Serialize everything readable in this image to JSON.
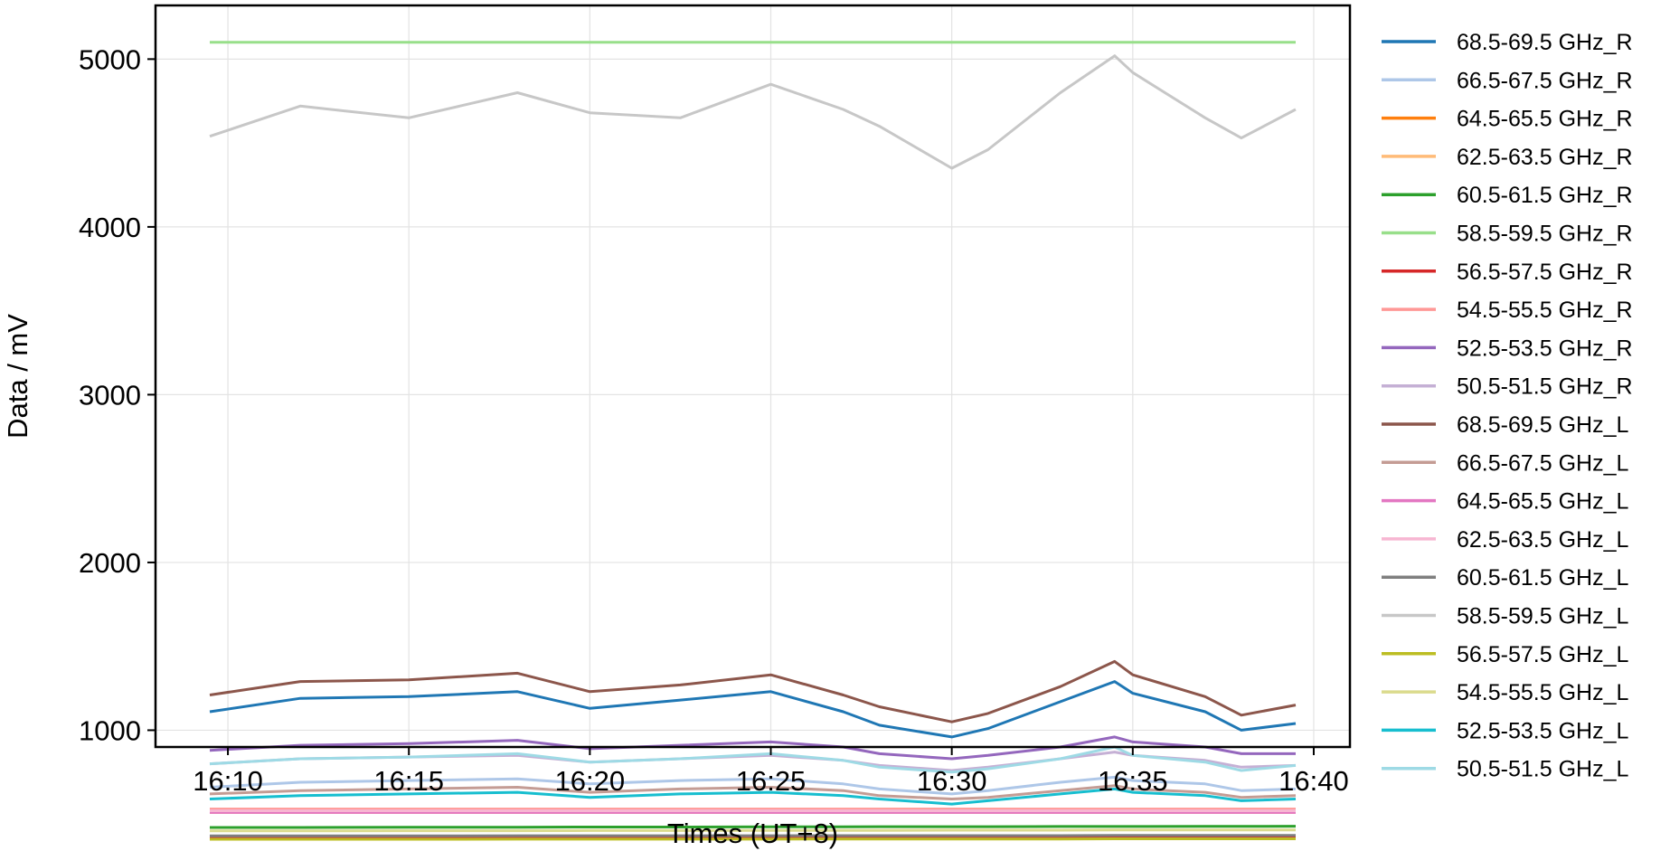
{
  "chart_data": {
    "type": "line",
    "xlabel": "Times (UT+8)",
    "ylabel": "Data / mV",
    "x_range": [
      "16:08",
      "16:41"
    ],
    "ylim": [
      900,
      5320
    ],
    "y_ticks": [
      1000,
      2000,
      3000,
      4000,
      5000
    ],
    "x_ticks": [
      "16:10",
      "16:15",
      "16:20",
      "16:25",
      "16:30",
      "16:35",
      "16:40"
    ],
    "grid": true,
    "legend_position": "right, outside plot",
    "x_time_points": [
      "16:09:30",
      "16:12",
      "16:15",
      "16:18",
      "16:20",
      "16:22:30",
      "16:25",
      "16:27",
      "16:28",
      "16:30",
      "16:31",
      "16:33",
      "16:34:30",
      "16:35",
      "16:37",
      "16:38",
      "16:39:30"
    ],
    "series": [
      {
        "name": "68.5-69.5 GHz_R",
        "color": "#1f77b4",
        "values": [
          1110,
          1190,
          1200,
          1230,
          1130,
          1180,
          1230,
          1110,
          1030,
          960,
          1010,
          1170,
          1290,
          1220,
          1110,
          1000,
          1040
        ]
      },
      {
        "name": "66.5-67.5 GHz_R",
        "color": "#aec7e8",
        "values": [
          660,
          690,
          700,
          710,
          680,
          700,
          710,
          680,
          650,
          620,
          640,
          690,
          720,
          700,
          680,
          640,
          650
        ]
      },
      {
        "name": "64.5-65.5 GHz_R",
        "color": "#ff7f0e",
        "values": [
          520,
          520,
          520,
          520,
          520,
          520,
          520,
          520,
          520,
          520,
          520,
          520,
          520,
          520,
          520,
          520,
          520
        ]
      },
      {
        "name": "62.5-63.5 GHz_R",
        "color": "#ffbb78",
        "values": [
          510,
          510,
          510,
          510,
          510,
          510,
          510,
          510,
          510,
          510,
          510,
          510,
          510,
          510,
          510,
          510,
          510
        ]
      },
      {
        "name": "60.5-61.5 GHz_R",
        "color": "#2ca02c",
        "values": [
          420,
          420,
          422,
          422,
          423,
          423,
          424,
          424,
          425,
          425,
          425,
          426,
          426,
          426,
          427,
          427,
          428
        ]
      },
      {
        "name": "58.5-59.5 GHz_R",
        "color": "#98df8a",
        "values": [
          5100,
          5100,
          5100,
          5100,
          5100,
          5100,
          5100,
          5100,
          5100,
          5100,
          5100,
          5100,
          5100,
          5100,
          5100,
          5100,
          5100
        ]
      },
      {
        "name": "56.5-57.5 GHz_R",
        "color": "#d62728",
        "values": [
          360,
          360,
          360,
          361,
          361,
          361,
          361,
          362,
          362,
          362,
          362,
          362,
          363,
          363,
          363,
          363,
          363
        ]
      },
      {
        "name": "54.5-55.5 GHz_R",
        "color": "#ff9896",
        "values": [
          530,
          530,
          530,
          530,
          530,
          530,
          530,
          530,
          530,
          530,
          530,
          530,
          530,
          530,
          530,
          530,
          530
        ]
      },
      {
        "name": "52.5-53.5 GHz_R",
        "color": "#9467bd",
        "values": [
          880,
          910,
          920,
          940,
          890,
          910,
          930,
          900,
          860,
          830,
          850,
          900,
          960,
          930,
          900,
          860,
          860
        ]
      },
      {
        "name": "50.5-51.5 GHz_R",
        "color": "#c5b0d5",
        "values": [
          800,
          830,
          840,
          850,
          810,
          830,
          850,
          820,
          790,
          760,
          780,
          830,
          870,
          850,
          820,
          780,
          790
        ]
      },
      {
        "name": "68.5-69.5 GHz_L",
        "color": "#8c564b",
        "values": [
          1210,
          1290,
          1300,
          1340,
          1230,
          1270,
          1330,
          1210,
          1140,
          1050,
          1100,
          1260,
          1410,
          1330,
          1200,
          1090,
          1150
        ]
      },
      {
        "name": "66.5-67.5 GHz_L",
        "color": "#c49c94",
        "values": [
          620,
          640,
          650,
          660,
          630,
          650,
          660,
          640,
          610,
          590,
          600,
          640,
          670,
          650,
          630,
          600,
          610
        ]
      },
      {
        "name": "64.5-65.5 GHz_L",
        "color": "#e377c2",
        "values": [
          510,
          510,
          510,
          510,
          510,
          510,
          510,
          510,
          510,
          510,
          510,
          510,
          510,
          510,
          510,
          510,
          510
        ]
      },
      {
        "name": "62.5-63.5 GHz_L",
        "color": "#f7b6d2",
        "values": [
          520,
          520,
          520,
          520,
          520,
          520,
          520,
          520,
          520,
          520,
          520,
          520,
          520,
          520,
          520,
          520,
          520
        ]
      },
      {
        "name": "60.5-61.5 GHz_L",
        "color": "#7f7f7f",
        "values": [
          370,
          370,
          370,
          371,
          371,
          371,
          371,
          372,
          372,
          372,
          372,
          372,
          373,
          373,
          373,
          373,
          373
        ]
      },
      {
        "name": "58.5-59.5 GHz_L",
        "color": "#c7c7c7",
        "values": [
          4540,
          4720,
          4650,
          4800,
          4680,
          4650,
          4850,
          4700,
          4600,
          4350,
          4460,
          4800,
          5020,
          4920,
          4650,
          4530,
          4700
        ]
      },
      {
        "name": "56.5-57.5 GHz_L",
        "color": "#bcbd22",
        "values": [
          350,
          350,
          350,
          351,
          351,
          351,
          351,
          352,
          352,
          352,
          352,
          352,
          353,
          353,
          353,
          353,
          353
        ]
      },
      {
        "name": "54.5-55.5 GHz_L",
        "color": "#dbdb8d",
        "values": [
          400,
          400,
          401,
          401,
          402,
          402,
          403,
          403,
          403,
          404,
          404,
          404,
          405,
          405,
          405,
          405,
          405
        ]
      },
      {
        "name": "52.5-53.5 GHz_L",
        "color": "#17becf",
        "values": [
          590,
          610,
          620,
          630,
          600,
          620,
          630,
          610,
          590,
          560,
          580,
          620,
          650,
          630,
          610,
          580,
          590
        ]
      },
      {
        "name": "50.5-51.5 GHz_L",
        "color": "#9edae5",
        "values": [
          800,
          830,
          840,
          860,
          810,
          830,
          860,
          820,
          780,
          750,
          770,
          830,
          900,
          850,
          810,
          760,
          790
        ]
      }
    ]
  }
}
